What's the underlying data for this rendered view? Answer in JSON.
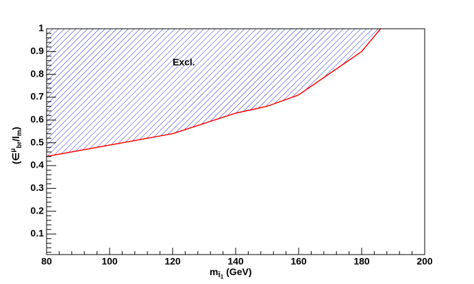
{
  "chart_data": {
    "type": "exclusion",
    "x": [
      80,
      100,
      120,
      140,
      150,
      160,
      180,
      186
    ],
    "series": [
      {
        "values": [
          0.44,
          0.49,
          0.54,
          0.63,
          0.66,
          0.71,
          0.9,
          1.0
        ],
        "color": "#ff0000",
        "fill_color": "#2020c0"
      }
    ],
    "xlim": [
      80,
      200
    ],
    "ylim": [
      0.01,
      1
    ],
    "xticks": [
      80,
      100,
      120,
      140,
      160,
      180,
      200
    ],
    "yticks": [
      0.1,
      0.2,
      0.3,
      0.4,
      0.5,
      0.6,
      0.7,
      0.8,
      0.9,
      1
    ],
    "x_minor_divisions": 4,
    "y_minor_divisions": 5,
    "annotation": {
      "text": "Excl.",
      "x": 120,
      "y": 0.85
    },
    "xlabel": [
      {
        "text": "m",
        "shift": "base"
      },
      {
        "text": "t̃",
        "shift": "sub"
      },
      {
        "text": "1",
        "shift": "subsub"
      },
      {
        "text": " (GeV)",
        "shift": "base"
      }
    ],
    "ylabel": [
      {
        "text": "(∈",
        "shift": "base"
      },
      {
        "text": "μ",
        "shift": "sup"
      },
      {
        "text": "br",
        "shift": "sub"
      },
      {
        "text": "/l",
        "shift": "base"
      },
      {
        "text": "m",
        "shift": "sub"
      },
      {
        "text": ")",
        "shift": "base"
      }
    ]
  }
}
